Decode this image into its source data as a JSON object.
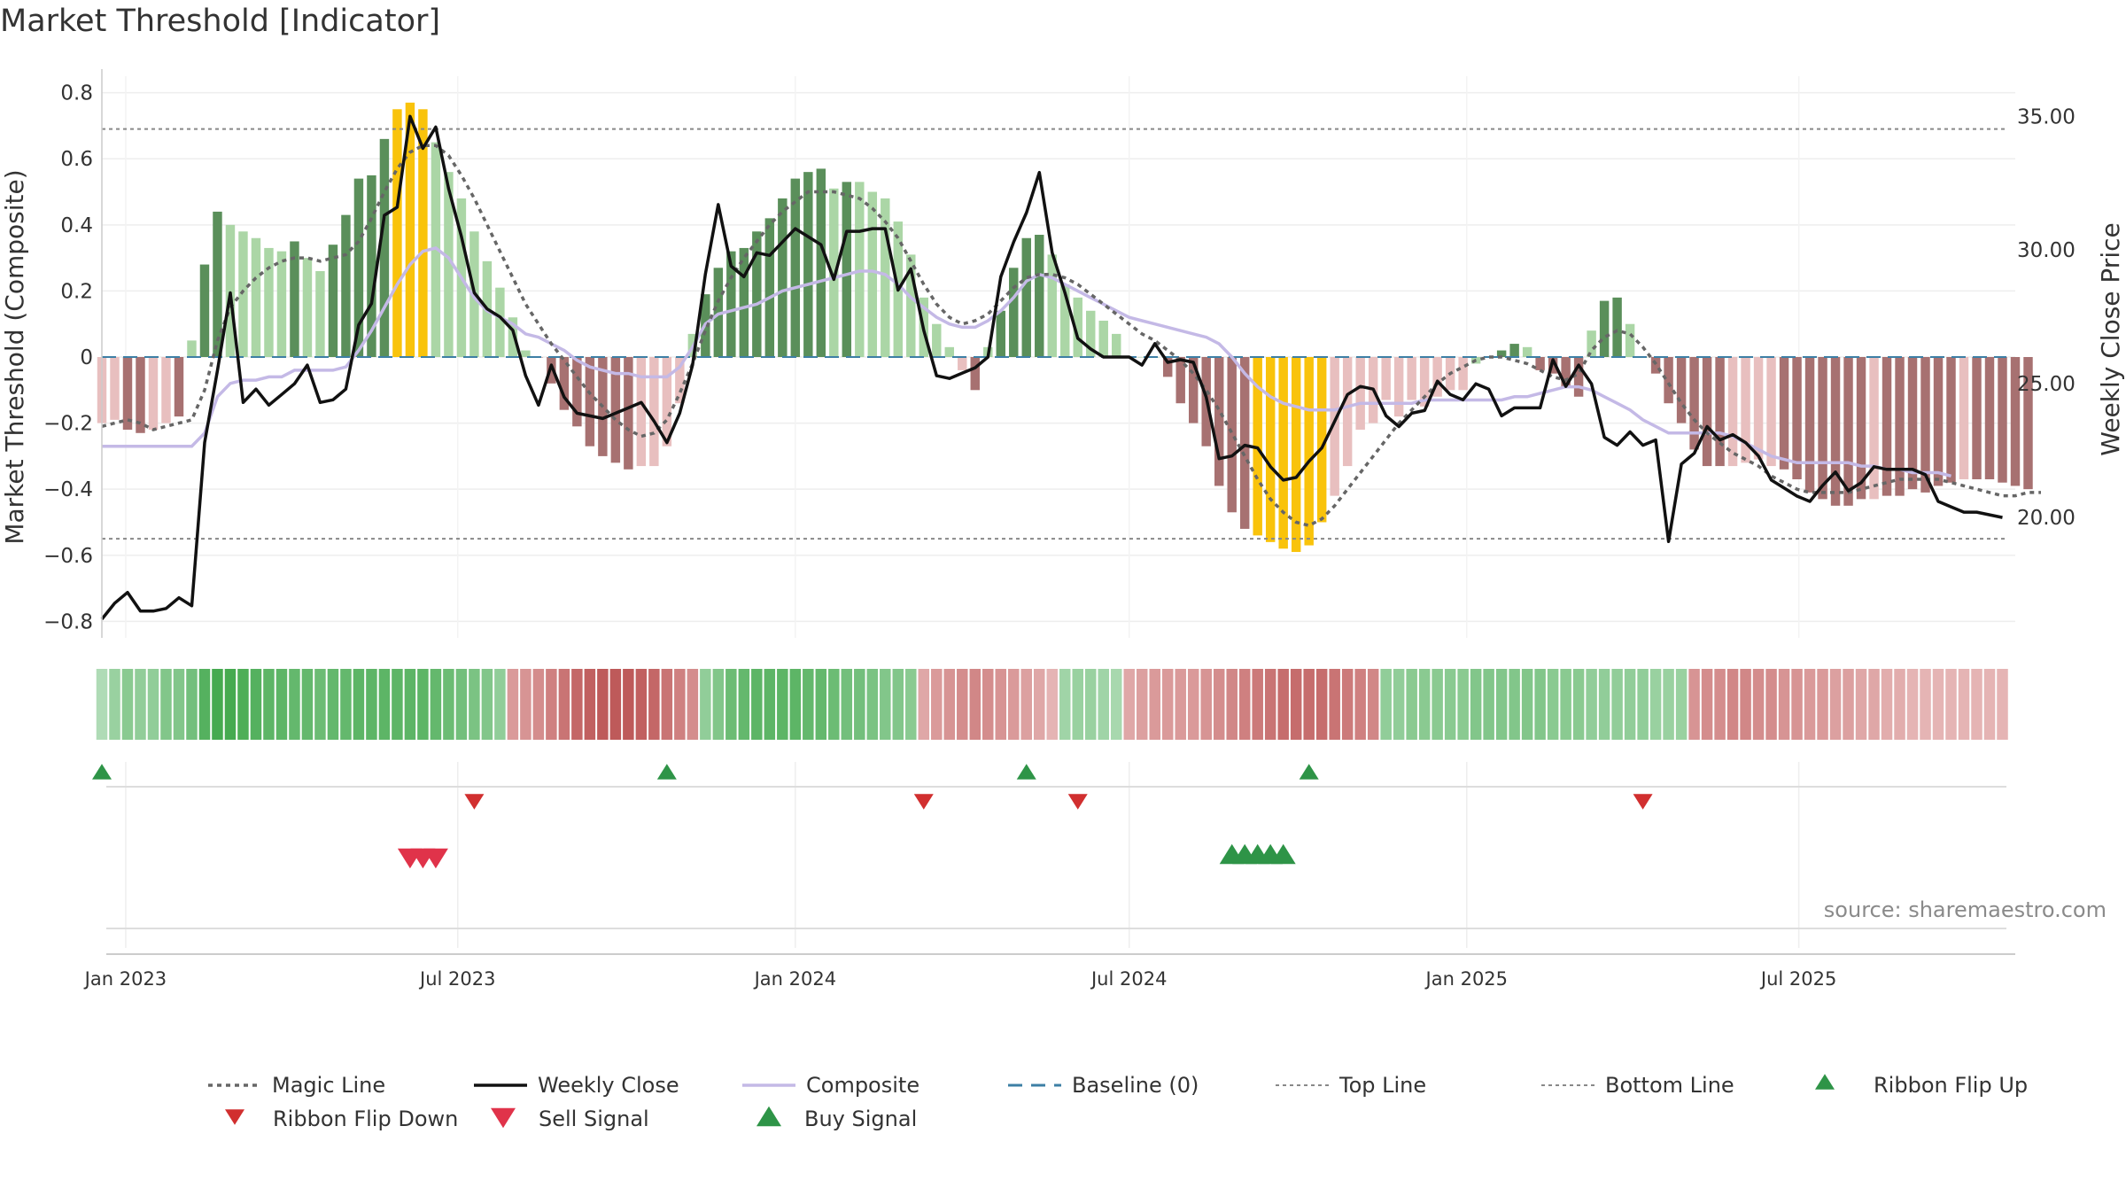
{
  "title": "Market Threshold [Indicator]",
  "source": "source: sharemaestro.com",
  "colors": {
    "bar_up_dark": "#5a8f5a",
    "bar_up_light": "#abd6a6",
    "bar_down_dark": "#a77171",
    "bar_down_light": "#e8bfbf",
    "bar_extreme": "#f9c30b",
    "weekly_close": "#111111",
    "magic_line": "#666666",
    "composite": "#c4b9e6",
    "baseline": "#3d7fa5",
    "threshold_lines": "#888888",
    "ribbon_flip_up": "#2e9447",
    "ribbon_flip_down": "#d12f2f",
    "buy_signal": "#2e9447",
    "sell_signal": "#e0334a"
  },
  "chart_data": {
    "type": "bar+line",
    "x_start": "2022-12-19",
    "x_step_days": 7,
    "xlim": [
      "2022-12-19",
      "2025-10-27"
    ],
    "x_ticks": [
      "2023-01-01",
      "2023-07-01",
      "2024-01-01",
      "2024-07-01",
      "2025-01-01",
      "2025-07-01"
    ],
    "x_tick_labels": [
      "Jan 2023",
      "Jul 2023",
      "Jan 2024",
      "Jul 2024",
      "Jan 2025",
      "Jul 2025"
    ],
    "y_left": {
      "label": "Market Threshold (Composite)",
      "lim": [
        -0.85,
        0.85
      ],
      "ticks": [
        -0.8,
        -0.6,
        -0.4,
        -0.2,
        0,
        0.2,
        0.4,
        0.6,
        0.8
      ],
      "tick_labels": [
        "−0.8",
        "−0.6",
        "−0.4",
        "−0.2",
        "0",
        "0.2",
        "0.4",
        "0.6",
        "0.8"
      ]
    },
    "y_right": {
      "label": "Weekly Close Price",
      "lim": [
        15.5,
        36.5
      ],
      "ticks": [
        20,
        25,
        30,
        35
      ],
      "tick_labels": [
        "20.00",
        "25.00",
        "30.00",
        "35.00"
      ]
    },
    "top_line": 0.69,
    "bottom_line": -0.55,
    "bars": [
      -0.2,
      -0.19,
      -0.22,
      -0.23,
      -0.22,
      -0.2,
      -0.18,
      0.05,
      0.28,
      0.44,
      0.4,
      0.38,
      0.36,
      0.33,
      0.32,
      0.35,
      0.3,
      0.26,
      0.34,
      0.43,
      0.54,
      0.55,
      0.66,
      0.75,
      0.77,
      0.75,
      0.65,
      0.56,
      0.48,
      0.38,
      0.29,
      0.21,
      0.12,
      0.02,
      0.0,
      -0.08,
      -0.16,
      -0.21,
      -0.27,
      -0.3,
      -0.32,
      -0.34,
      -0.33,
      -0.33,
      -0.27,
      -0.14,
      0.07,
      0.19,
      0.27,
      0.32,
      0.33,
      0.38,
      0.42,
      0.48,
      0.54,
      0.56,
      0.57,
      0.51,
      0.53,
      0.53,
      0.5,
      0.48,
      0.41,
      0.31,
      0.18,
      0.1,
      0.03,
      -0.04,
      -0.1,
      0.03,
      0.14,
      0.27,
      0.36,
      0.37,
      0.31,
      0.22,
      0.18,
      0.14,
      0.11,
      0.07,
      0.0,
      0.0,
      0.0,
      -0.06,
      -0.14,
      -0.2,
      -0.27,
      -0.39,
      -0.47,
      -0.52,
      -0.54,
      -0.56,
      -0.58,
      -0.59,
      -0.57,
      -0.5,
      -0.42,
      -0.33,
      -0.22,
      -0.2,
      -0.13,
      -0.18,
      -0.13,
      -0.15,
      -0.12,
      -0.1,
      -0.1,
      -0.02,
      0.0,
      0.02,
      0.04,
      0.03,
      -0.04,
      -0.05,
      -0.09,
      -0.12,
      0.08,
      0.17,
      0.18,
      0.1,
      0.0,
      -0.05,
      -0.14,
      -0.2,
      -0.28,
      -0.33,
      -0.33,
      -0.33,
      -0.32,
      -0.31,
      -0.33,
      -0.34,
      -0.37,
      -0.41,
      -0.43,
      -0.45,
      -0.45,
      -0.43,
      -0.43,
      -0.42,
      -0.42,
      -0.4,
      -0.41,
      -0.39,
      -0.38,
      -0.37,
      -0.37,
      -0.37,
      -0.38,
      -0.39,
      -0.4
    ],
    "bar_colors": [
      "dl",
      "dl",
      "dd",
      "dd",
      "dl",
      "dl",
      "dd",
      "ul",
      "ud",
      "ud",
      "ul",
      "ul",
      "ul",
      "ul",
      "ul",
      "ud",
      "ul",
      "ul",
      "ud",
      "ud",
      "ud",
      "ud",
      "ud",
      "ex",
      "ex",
      "ex",
      "ul",
      "ul",
      "ul",
      "ul",
      "ul",
      "ul",
      "ul",
      "ul",
      "dd",
      "dd",
      "dd",
      "dd",
      "dd",
      "dd",
      "dd",
      "dd",
      "dl",
      "dl",
      "dl",
      "dl",
      "ul",
      "ud",
      "ud",
      "ud",
      "ud",
      "ud",
      "ud",
      "ud",
      "ud",
      "ud",
      "ud",
      "ul",
      "ud",
      "ul",
      "ul",
      "ul",
      "ul",
      "ul",
      "ul",
      "ul",
      "ul",
      "dl",
      "dd",
      "ul",
      "ud",
      "ud",
      "ud",
      "ud",
      "ul",
      "ul",
      "ul",
      "ul",
      "ul",
      "ul",
      "ul",
      "ul",
      "ul",
      "dd",
      "dd",
      "dd",
      "dd",
      "dd",
      "dd",
      "dd",
      "ex",
      "ex",
      "ex",
      "ex",
      "ex",
      "ex",
      "dl",
      "dl",
      "dl",
      "dl",
      "dl",
      "dl",
      "dl",
      "dl",
      "dl",
      "dl",
      "dl",
      "ul",
      "ul",
      "ud",
      "ud",
      "ul",
      "dd",
      "dd",
      "dd",
      "dd",
      "ul",
      "ud",
      "ud",
      "ul",
      "ul",
      "dd",
      "dd",
      "dd",
      "dd",
      "dd",
      "dd",
      "dl",
      "dl",
      "dl",
      "dl",
      "dd",
      "dd",
      "dd",
      "dd",
      "dd",
      "dd",
      "dd",
      "dl",
      "dd",
      "dd",
      "dd",
      "dd",
      "dd",
      "dd",
      "dl",
      "dd",
      "dd",
      "dd",
      "dd",
      "dd",
      "dl"
    ],
    "weekly_close": [
      16.2,
      16.8,
      17.2,
      16.5,
      16.5,
      16.6,
      17.0,
      16.7,
      22.8,
      25.5,
      28.4,
      24.3,
      24.8,
      24.2,
      24.6,
      25.0,
      25.7,
      24.3,
      24.4,
      24.8,
      27.2,
      28.0,
      31.3,
      31.6,
      35.0,
      33.8,
      34.6,
      32.3,
      30.5,
      28.4,
      27.8,
      27.5,
      27.0,
      25.3,
      24.2,
      25.7,
      24.5,
      23.9,
      23.8,
      23.7,
      23.9,
      24.1,
      24.3,
      23.6,
      22.8,
      23.9,
      25.7,
      29.1,
      31.7,
      29.4,
      29.0,
      29.9,
      29.8,
      30.3,
      30.8,
      30.5,
      30.2,
      28.9,
      30.7,
      30.7,
      30.8,
      30.8,
      28.5,
      29.3,
      27.0,
      25.3,
      25.2,
      25.4,
      25.6,
      26.0,
      29.0,
      30.3,
      31.4,
      32.9,
      29.9,
      28.4,
      26.7,
      26.3,
      26.0,
      26.0,
      26.0,
      25.7,
      26.5,
      25.8,
      25.9,
      25.8,
      24.5,
      22.2,
      22.3,
      22.7,
      22.6,
      21.9,
      21.4,
      21.5,
      22.1,
      22.6,
      23.6,
      24.6,
      24.9,
      24.8,
      23.8,
      23.4,
      23.9,
      24.0,
      25.1,
      24.6,
      24.4,
      25.0,
      24.8,
      23.8,
      24.1,
      24.1,
      24.1,
      25.9,
      24.9,
      25.7,
      25.0,
      23.0,
      22.7,
      23.2,
      22.7,
      22.9,
      19.1,
      22.0,
      22.4,
      23.4,
      22.9,
      23.1,
      22.8,
      22.3,
      21.4,
      21.1,
      20.8,
      20.6,
      21.2,
      21.7,
      21.0,
      21.3,
      21.9,
      21.8,
      21.8,
      21.8,
      21.6,
      20.6,
      20.4,
      20.2,
      20.2,
      20.1,
      20.0
    ],
    "magic_line": [
      -0.21,
      -0.2,
      -0.19,
      -0.2,
      -0.22,
      -0.21,
      -0.2,
      -0.19,
      -0.1,
      0.05,
      0.15,
      0.2,
      0.24,
      0.27,
      0.29,
      0.3,
      0.3,
      0.29,
      0.3,
      0.31,
      0.35,
      0.42,
      0.5,
      0.57,
      0.62,
      0.64,
      0.64,
      0.61,
      0.55,
      0.48,
      0.4,
      0.32,
      0.24,
      0.16,
      0.1,
      0.04,
      -0.01,
      -0.06,
      -0.11,
      -0.15,
      -0.19,
      -0.22,
      -0.24,
      -0.23,
      -0.19,
      -0.11,
      -0.02,
      0.08,
      0.17,
      0.24,
      0.3,
      0.35,
      0.4,
      0.44,
      0.47,
      0.5,
      0.5,
      0.5,
      0.49,
      0.48,
      0.45,
      0.41,
      0.36,
      0.29,
      0.22,
      0.16,
      0.12,
      0.1,
      0.11,
      0.13,
      0.17,
      0.21,
      0.24,
      0.25,
      0.25,
      0.24,
      0.22,
      0.19,
      0.16,
      0.13,
      0.1,
      0.07,
      0.05,
      0.02,
      -0.01,
      -0.05,
      -0.1,
      -0.16,
      -0.23,
      -0.3,
      -0.37,
      -0.43,
      -0.47,
      -0.5,
      -0.51,
      -0.49,
      -0.45,
      -0.4,
      -0.35,
      -0.3,
      -0.25,
      -0.2,
      -0.16,
      -0.12,
      -0.08,
      -0.05,
      -0.03,
      -0.01,
      0.0,
      0.0,
      -0.01,
      -0.02,
      -0.04,
      -0.06,
      -0.07,
      -0.05,
      0.02,
      0.06,
      0.08,
      0.07,
      0.03,
      -0.02,
      -0.08,
      -0.14,
      -0.19,
      -0.23,
      -0.26,
      -0.29,
      -0.31,
      -0.33,
      -0.36,
      -0.38,
      -0.4,
      -0.41,
      -0.41,
      -0.41,
      -0.41,
      -0.4,
      -0.39,
      -0.38,
      -0.37,
      -0.37,
      -0.37,
      -0.37,
      -0.38,
      -0.39,
      -0.4,
      -0.41,
      -0.42,
      -0.42,
      -0.41,
      -0.41
    ],
    "composite": [
      -0.27,
      -0.27,
      -0.27,
      -0.27,
      -0.27,
      -0.27,
      -0.27,
      -0.27,
      -0.23,
      -0.12,
      -0.08,
      -0.07,
      -0.07,
      -0.06,
      -0.06,
      -0.04,
      -0.04,
      -0.04,
      -0.04,
      -0.03,
      0.02,
      0.08,
      0.15,
      0.22,
      0.28,
      0.32,
      0.33,
      0.3,
      0.24,
      0.18,
      0.14,
      0.12,
      0.1,
      0.07,
      0.06,
      0.04,
      0.02,
      -0.01,
      -0.03,
      -0.04,
      -0.05,
      -0.05,
      -0.06,
      -0.06,
      -0.06,
      -0.03,
      0.03,
      0.1,
      0.13,
      0.14,
      0.15,
      0.16,
      0.18,
      0.2,
      0.21,
      0.22,
      0.23,
      0.24,
      0.25,
      0.26,
      0.26,
      0.25,
      0.22,
      0.18,
      0.15,
      0.12,
      0.1,
      0.09,
      0.09,
      0.11,
      0.14,
      0.18,
      0.23,
      0.25,
      0.24,
      0.22,
      0.2,
      0.18,
      0.16,
      0.14,
      0.12,
      0.11,
      0.1,
      0.09,
      0.08,
      0.07,
      0.06,
      0.04,
      0.0,
      -0.05,
      -0.09,
      -0.12,
      -0.14,
      -0.15,
      -0.16,
      -0.16,
      -0.16,
      -0.15,
      -0.14,
      -0.14,
      -0.14,
      -0.14,
      -0.14,
      -0.13,
      -0.13,
      -0.13,
      -0.13,
      -0.13,
      -0.13,
      -0.13,
      -0.12,
      -0.12,
      -0.11,
      -0.1,
      -0.09,
      -0.09,
      -0.1,
      -0.12,
      -0.14,
      -0.16,
      -0.19,
      -0.21,
      -0.23,
      -0.23,
      -0.23,
      -0.23,
      -0.23,
      -0.24,
      -0.26,
      -0.28,
      -0.3,
      -0.31,
      -0.32,
      -0.32,
      -0.32,
      -0.32,
      -0.32,
      -0.33,
      -0.33,
      -0.34,
      -0.34,
      -0.35,
      -0.35,
      -0.35,
      -0.36
    ],
    "ribbon": [
      0.3,
      0.45,
      0.55,
      0.5,
      0.5,
      0.6,
      0.6,
      0.7,
      0.9,
      1.0,
      1.0,
      0.95,
      0.9,
      0.85,
      0.85,
      0.8,
      0.8,
      0.75,
      0.8,
      0.8,
      0.85,
      0.85,
      0.85,
      0.85,
      0.85,
      0.85,
      0.8,
      0.75,
      0.7,
      0.65,
      0.6,
      0.5,
      -0.5,
      -0.55,
      -0.6,
      -0.7,
      -0.8,
      -0.9,
      -0.95,
      -1.0,
      -1.0,
      -1.0,
      -0.95,
      -0.9,
      -0.8,
      -0.7,
      -0.6,
      0.5,
      0.6,
      0.75,
      0.8,
      0.85,
      0.85,
      0.85,
      0.85,
      0.8,
      0.8,
      0.75,
      0.7,
      0.7,
      0.65,
      0.6,
      0.6,
      0.55,
      -0.4,
      -0.5,
      -0.55,
      -0.6,
      -0.65,
      -0.6,
      -0.55,
      -0.5,
      -0.45,
      -0.4,
      -0.3,
      0.4,
      0.45,
      0.45,
      0.4,
      0.35,
      -0.4,
      -0.45,
      -0.5,
      -0.5,
      -0.5,
      -0.5,
      -0.55,
      -0.6,
      -0.65,
      -0.7,
      -0.75,
      -0.8,
      -0.85,
      -0.85,
      -0.85,
      -0.85,
      -0.8,
      -0.75,
      -0.7,
      -0.65,
      0.5,
      0.5,
      0.55,
      0.55,
      0.55,
      0.55,
      0.55,
      0.6,
      0.6,
      0.6,
      0.6,
      0.6,
      0.6,
      0.55,
      0.55,
      0.55,
      0.5,
      0.5,
      0.5,
      0.5,
      0.5,
      0.45,
      0.45,
      0.45,
      -0.55,
      -0.6,
      -0.6,
      -0.65,
      -0.65,
      -0.6,
      -0.6,
      -0.55,
      -0.55,
      -0.5,
      -0.5,
      -0.45,
      -0.45,
      -0.4,
      -0.4,
      -0.35,
      -0.35,
      -0.3,
      -0.3,
      -0.3,
      -0.3,
      -0.3,
      -0.3,
      -0.3,
      -0.3
    ],
    "ribbon_flip_up": [
      "2022-12-19",
      "2023-10-23",
      "2024-05-06",
      "2024-10-07"
    ],
    "ribbon_flip_down": [
      "2023-07-10",
      "2024-03-11",
      "2024-06-03",
      "2025-04-07"
    ],
    "sell_signals": [
      "2023-06-05",
      "2023-06-12",
      "2023-06-19"
    ],
    "buy_signals": [
      "2024-08-26",
      "2024-09-02",
      "2024-09-09",
      "2024-09-16",
      "2024-09-23"
    ]
  },
  "legend": {
    "placement": "bottom",
    "items": [
      {
        "type": "dotted",
        "label": "Magic Line"
      },
      {
        "type": "solid",
        "label": "Weekly Close"
      },
      {
        "type": "composite",
        "label": "Composite"
      },
      {
        "type": "dashed",
        "label": "Baseline (0)"
      },
      {
        "type": "finedash",
        "label": "Top Line"
      },
      {
        "type": "finedash",
        "label": "Bottom Line"
      },
      {
        "type": "tri-up-small",
        "label": "Ribbon Flip Up"
      },
      {
        "type": "tri-down-small",
        "label": "Ribbon Flip Down"
      },
      {
        "type": "tri-down-big",
        "label": "Sell Signal"
      },
      {
        "type": "tri-up-big",
        "label": "Buy Signal"
      }
    ]
  }
}
